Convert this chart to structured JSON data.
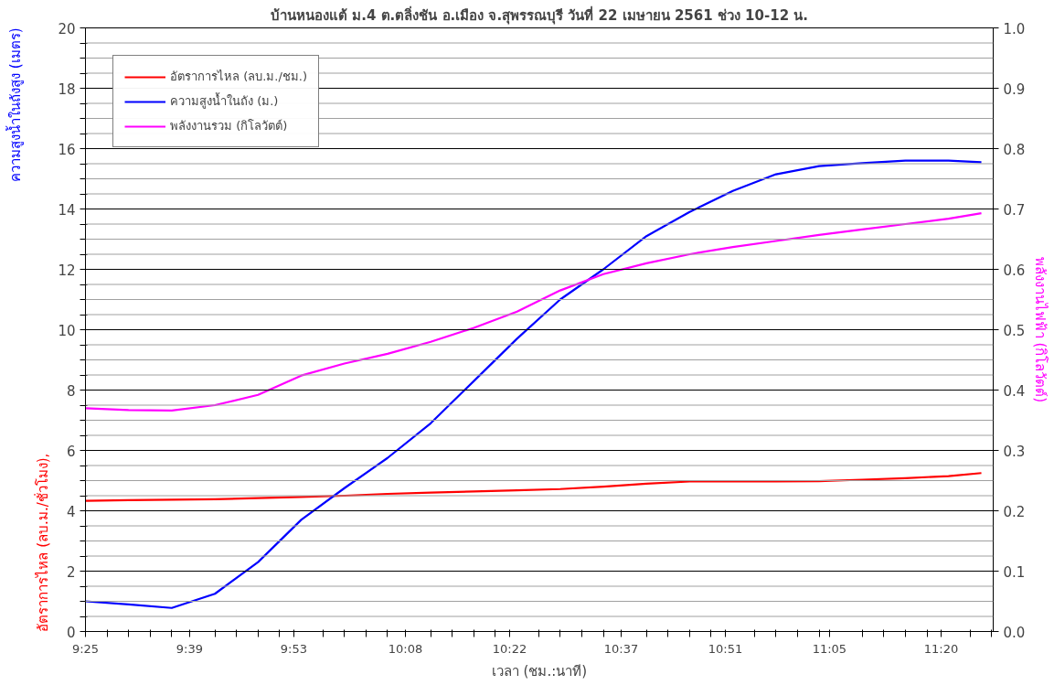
{
  "chart_data": {
    "type": "line",
    "title": "บ้านหนองแต้ ม.4 ต.ตลิ่งชัน อ.เมือง จ.สุพรรณบุรี วันที่ 22 เมษายน 2561 ช่วง 10-12 น.",
    "xlabel": "เวลา (ชม.:นาที)",
    "ylabel": "อัตราการไหล (ลบ.ม./ชั่วโมง), ความสูงน้ำในถังสูง (เมตร)",
    "y2label": "พลังงานไฟฟ้า (กิโลวัตต์)",
    "x": [
      9.4167,
      9.5133,
      9.61,
      9.7067,
      9.8033,
      9.9,
      9.9967,
      10.0933,
      10.19,
      10.2867,
      10.3833,
      10.48,
      10.5767,
      10.6733,
      10.77,
      10.8667,
      10.9633,
      11.06,
      11.1567,
      11.2533,
      11.35,
      11.4235
    ],
    "series": [
      {
        "name": "อัตราการไหล (ลบ.ม./ชม.)",
        "color": "#ff0000",
        "values": [
          4.33,
          4.35,
          4.37,
          4.38,
          4.42,
          4.46,
          4.5,
          4.56,
          4.6,
          4.64,
          4.68,
          4.72,
          4.8,
          4.9,
          4.97,
          4.97,
          4.97,
          4.98,
          5.03,
          5.08,
          5.15,
          5.25
        ]
      },
      {
        "name": "ความสูงน้ำในถัง (ม.)",
        "color": "#0000ff",
        "values": [
          1.0,
          0.9,
          0.78,
          1.25,
          2.3,
          3.7,
          4.75,
          5.75,
          6.9,
          8.3,
          9.7,
          11.0,
          12.0,
          13.1,
          13.9,
          14.6,
          15.15,
          15.42,
          15.52,
          15.6,
          15.6,
          15.55
        ]
      },
      {
        "name": "พลังงานรวม (กิโลวัตต์)",
        "color": "#ff00ff",
        "axis": "y2",
        "values": [
          0.37,
          0.367,
          0.366,
          0.375,
          0.392,
          0.424,
          0.444,
          0.46,
          0.48,
          0.503,
          0.53,
          0.565,
          0.592,
          0.61,
          0.625,
          0.637,
          0.647,
          0.657,
          0.666,
          0.675,
          0.684,
          0.693
        ]
      }
    ],
    "xlim": [
      9.4167,
      11.45
    ],
    "xticks": [
      {
        "value": 9.4167,
        "label": "9:25"
      },
      {
        "value": 9.465,
        "label": null
      },
      {
        "value": 9.5133,
        "label": null
      },
      {
        "value": 9.5617,
        "label": null
      },
      {
        "value": 9.61,
        "label": null
      },
      {
        "value": 9.65,
        "label": "9:39"
      },
      {
        "value": 9.7067,
        "label": null
      },
      {
        "value": 9.755,
        "label": null
      },
      {
        "value": 9.8033,
        "label": null
      },
      {
        "value": 9.8517,
        "label": null
      },
      {
        "value": 9.8833,
        "label": "9:53"
      },
      {
        "value": 9.9483,
        "label": null
      },
      {
        "value": 9.9967,
        "label": null
      },
      {
        "value": 10.045,
        "label": null
      },
      {
        "value": 10.0933,
        "label": null
      },
      {
        "value": 10.1333,
        "label": "10:08"
      },
      {
        "value": 10.19,
        "label": null
      },
      {
        "value": 10.2383,
        "label": null
      },
      {
        "value": 10.2867,
        "label": null
      },
      {
        "value": 10.335,
        "label": null
      },
      {
        "value": 10.3667,
        "label": "10:22"
      },
      {
        "value": 10.4317,
        "label": null
      },
      {
        "value": 10.48,
        "label": null
      },
      {
        "value": 10.5283,
        "label": null
      },
      {
        "value": 10.5767,
        "label": null
      },
      {
        "value": 10.6167,
        "label": "10:37"
      },
      {
        "value": 10.6733,
        "label": null
      },
      {
        "value": 10.7217,
        "label": null
      },
      {
        "value": 10.77,
        "label": null
      },
      {
        "value": 10.8183,
        "label": null
      },
      {
        "value": 10.85,
        "label": "10:51"
      },
      {
        "value": 10.915,
        "label": null
      },
      {
        "value": 10.9633,
        "label": null
      },
      {
        "value": 11.0117,
        "label": null
      },
      {
        "value": 11.06,
        "label": null
      },
      {
        "value": 11.0833,
        "label": "11:05"
      },
      {
        "value": 11.1567,
        "label": null
      },
      {
        "value": 11.205,
        "label": null
      },
      {
        "value": 11.2533,
        "label": null
      },
      {
        "value": 11.3017,
        "label": null
      },
      {
        "value": 11.3333,
        "label": "11:20"
      },
      {
        "value": 11.3983,
        "label": null
      },
      {
        "value": 11.4467,
        "label": null
      }
    ],
    "ylim": [
      0,
      20
    ],
    "yticks": [
      0,
      {
        "value": 0.5,
        "label": null
      },
      {
        "value": 1,
        "label": null
      },
      {
        "value": 1.5,
        "label": null
      },
      2,
      {
        "value": 2.5,
        "label": null
      },
      {
        "value": 3,
        "label": null
      },
      {
        "value": 3.5,
        "label": null
      },
      4,
      {
        "value": 4.5,
        "label": null
      },
      {
        "value": 5,
        "label": null
      },
      {
        "value": 5.5,
        "label": null
      },
      6,
      {
        "value": 6.5,
        "label": null
      },
      {
        "value": 7,
        "label": null
      },
      {
        "value": 7.5,
        "label": null
      },
      8,
      {
        "value": 8.5,
        "label": null
      },
      {
        "value": 9,
        "label": null
      },
      {
        "value": 9.5,
        "label": null
      },
      10,
      {
        "value": 10.5,
        "label": null
      },
      {
        "value": 11,
        "label": null
      },
      {
        "value": 11.5,
        "label": null
      },
      12,
      {
        "value": 12.5,
        "label": null
      },
      {
        "value": 13,
        "label": null
      },
      {
        "value": 13.5,
        "label": null
      },
      14,
      {
        "value": 14.5,
        "label": null
      },
      {
        "value": 15,
        "label": null
      },
      {
        "value": 15.5,
        "label": null
      },
      16,
      {
        "value": 16.5,
        "label": null
      },
      {
        "value": 17,
        "label": null
      },
      {
        "value": 17.5,
        "label": null
      },
      18,
      {
        "value": 18.5,
        "label": null
      },
      {
        "value": 19,
        "label": null
      },
      {
        "value": 19.5,
        "label": null
      },
      20
    ],
    "y2lim": [
      0,
      1
    ],
    "y2ticks": [
      {
        "value": 0,
        "label": "0.0"
      },
      {
        "value": 0.1,
        "label": "0.1"
      },
      {
        "value": 0.2,
        "label": "0.2"
      },
      {
        "value": 0.3,
        "label": "0.3"
      },
      {
        "value": 0.4,
        "label": "0.4"
      },
      {
        "value": 0.5,
        "label": "0.5"
      },
      {
        "value": 0.6,
        "label": "0.6"
      },
      {
        "value": 0.7,
        "label": "0.7"
      },
      {
        "value": 0.8,
        "label": "0.8"
      },
      {
        "value": 0.9,
        "label": "0.9"
      },
      {
        "value": 1,
        "label": "1.0"
      }
    ],
    "grid": "y",
    "legend": "top left",
    "line_style": "solid",
    "marker": "none"
  }
}
